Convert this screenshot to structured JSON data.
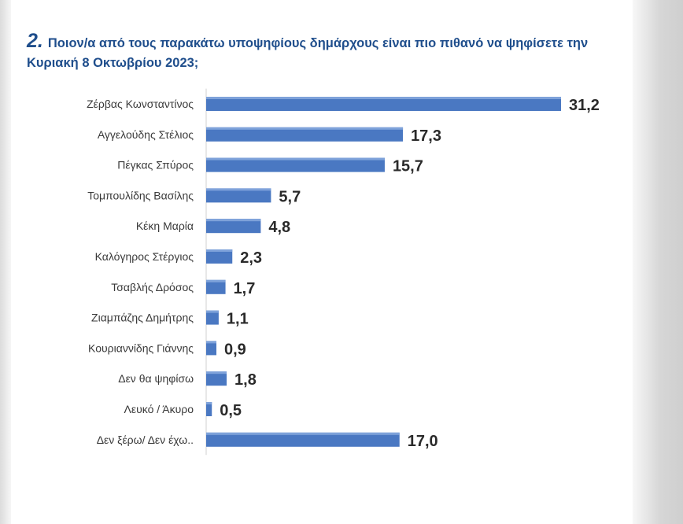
{
  "slide": {
    "question_number": "2.",
    "question_text": "Ποιον/α  από τους παρακάτω υποψηφίους δημάρχους  είναι πιο πιθανό να ψηφίσετε την Κυριακή 8 Οκτωβρίου 2023;"
  },
  "colors": {
    "bar": "#4a78c2",
    "title": "#1f4e8c"
  },
  "chart_data": {
    "type": "bar",
    "orientation": "horizontal",
    "title": "Ποιον/α  από τους παρακάτω υποψηφίους δημάρχους  είναι πιο πιθανό να ψηφίσετε την Κυριακή 8 Οκτωβρίου 2023;",
    "categories": [
      "Ζέρβας Κωνσταντίνος",
      "Αγγελούδης Στέλιος",
      "Πέγκας Σπύρος",
      "Τομπουλίδης Βασίλης",
      "Κέκη Μαρία",
      "Καλόγηρος Στέργιος",
      "Τσαβλής Δρόσος",
      "Ζιαμπάζης Δημήτρης",
      "Κουριαννίδης Γιάννης",
      "Δεν θα ψηφίσω",
      "Λευκό / Άκυρο",
      "Δεν ξέρω/ Δεν έχω.."
    ],
    "values": [
      31.2,
      17.3,
      15.7,
      5.7,
      4.8,
      2.3,
      1.7,
      1.1,
      0.9,
      1.8,
      0.5,
      17.0
    ],
    "value_labels": [
      "31,2",
      "17,3",
      "15,7",
      "5,7",
      "4,8",
      "2,3",
      "1,7",
      "1,1",
      "0,9",
      "1,8",
      "0,5",
      "17,0"
    ],
    "xlabel": "",
    "ylabel": "",
    "xlim": [
      0,
      31.2
    ],
    "grid": false,
    "legend": "none"
  }
}
